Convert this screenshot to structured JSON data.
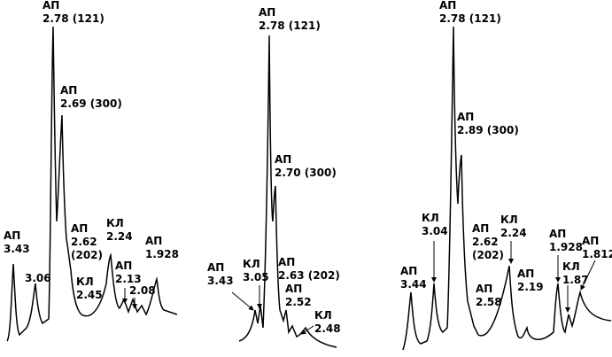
{
  "panels": [
    {
      "labels": [
        {
          "lines": [
            "АП",
            "2.78 (121)"
          ]
        },
        {
          "lines": [
            "АП",
            "2.69 (300)"
          ]
        },
        {
          "lines": [
            "АП",
            "3.43"
          ]
        },
        {
          "lines": [
            "3.06"
          ]
        },
        {
          "lines": [
            "АП",
            "2.62",
            "(202)"
          ]
        },
        {
          "lines": [
            "КЛ",
            "2.24"
          ]
        },
        {
          "lines": [
            "КЛ",
            "2.45"
          ]
        },
        {
          "lines": [
            "АП",
            "2.13"
          ]
        },
        {
          "lines": [
            "2.08"
          ]
        },
        {
          "lines": [
            "АП",
            "1.928"
          ]
        }
      ]
    },
    {
      "labels": [
        {
          "lines": [
            "АП",
            "2.78 (121)"
          ]
        },
        {
          "lines": [
            "АП",
            "2.70 (300)"
          ]
        },
        {
          "lines": [
            "АП",
            "3.43"
          ]
        },
        {
          "lines": [
            "КЛ",
            "3.05"
          ]
        },
        {
          "lines": [
            "АП",
            "2.63 (202)"
          ]
        },
        {
          "lines": [
            "АП",
            "2.52"
          ]
        },
        {
          "lines": [
            "КЛ",
            "2.48"
          ]
        }
      ]
    },
    {
      "labels": [
        {
          "lines": [
            "АП",
            "2.78 (121)"
          ]
        },
        {
          "lines": [
            "АП",
            "2.89 (300)"
          ]
        },
        {
          "lines": [
            "КЛ",
            "3.04"
          ]
        },
        {
          "lines": [
            "АП",
            "3.44"
          ]
        },
        {
          "lines": [
            "АП",
            "2.62",
            "(202)"
          ]
        },
        {
          "lines": [
            "АП",
            "2.58"
          ]
        },
        {
          "lines": [
            "КЛ",
            "2.24"
          ]
        },
        {
          "lines": [
            "АП",
            "2.19"
          ]
        },
        {
          "lines": [
            "АП",
            "1.928"
          ]
        },
        {
          "lines": [
            "КЛ",
            "1.87"
          ]
        },
        {
          "lines": [
            "АП",
            "1.812"
          ]
        }
      ]
    }
  ]
}
